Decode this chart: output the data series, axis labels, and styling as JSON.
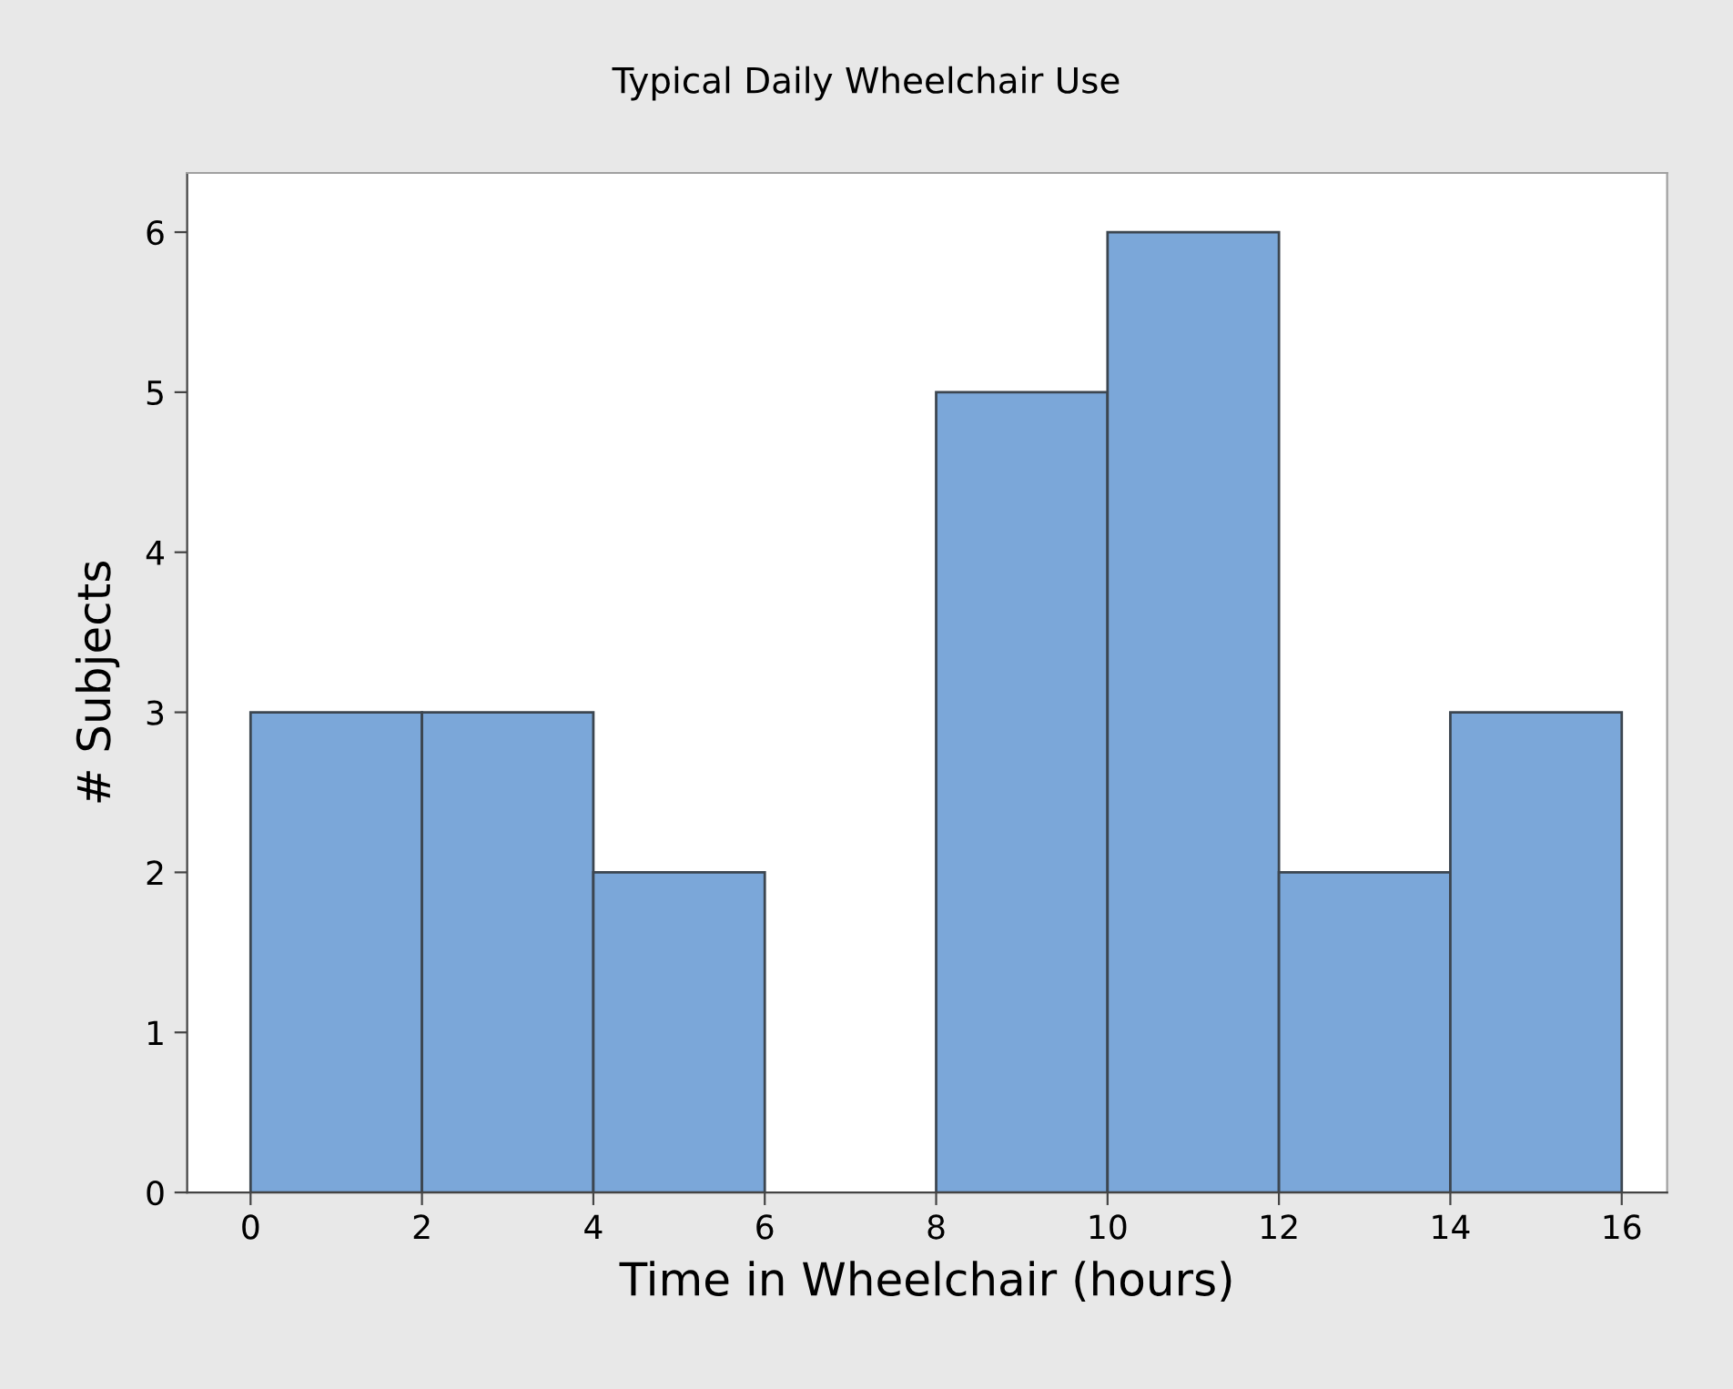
{
  "chart_data": {
    "type": "histogram",
    "title": "Typical Daily Wheelchair Use",
    "xlabel": "Time in Wheelchair (hours)",
    "ylabel": "# Subjects",
    "bins": [
      0,
      2,
      4,
      6,
      8,
      10,
      12,
      14,
      16
    ],
    "values": [
      3,
      3,
      2,
      0,
      5,
      6,
      2,
      3
    ],
    "color": "#7ba7d9",
    "xlim": [
      -0.74,
      16.53
    ],
    "xticks": [
      0,
      2,
      4,
      6,
      8,
      10,
      12,
      14,
      16
    ],
    "ylim": [
      0,
      6.37
    ],
    "yticks": [
      0,
      1,
      2,
      3,
      4,
      5,
      6
    ],
    "grid": false
  }
}
